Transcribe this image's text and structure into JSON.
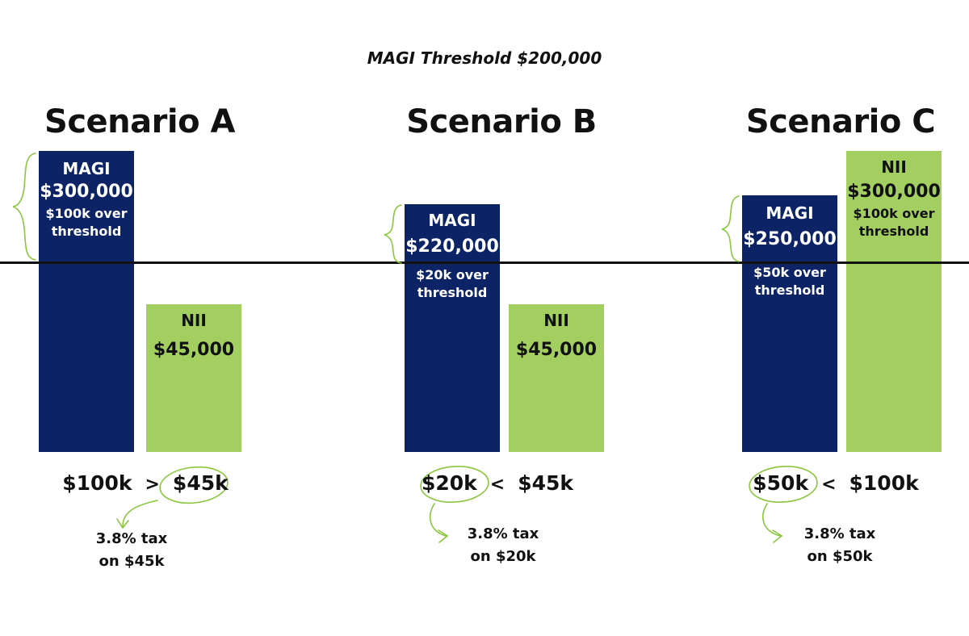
{
  "chart_data": {
    "type": "bar",
    "title": "MAGI Threshold $200,000",
    "threshold": 200000,
    "scenarios": [
      {
        "title": "Scenario A",
        "magi": {
          "label": "MAGI",
          "value": 300000,
          "value_text": "$300,000",
          "note": "$100k over threshold"
        },
        "nii": {
          "label": "NII",
          "value": 45000,
          "value_text": "$45,000",
          "note": ""
        },
        "compare": {
          "left": "$100k",
          "op": ">",
          "right": "$45k",
          "circled": "right"
        },
        "tax_note": [
          "3.8% tax",
          "on $45k"
        ]
      },
      {
        "title": "Scenario B",
        "magi": {
          "label": "MAGI",
          "value": 220000,
          "value_text": "$220,000",
          "note": "$20k over threshold"
        },
        "nii": {
          "label": "NII",
          "value": 45000,
          "value_text": "$45,000",
          "note": ""
        },
        "compare": {
          "left": "$20k",
          "op": "<",
          "right": "$45k",
          "circled": "left"
        },
        "tax_note": [
          "3.8% tax",
          "on $20k"
        ]
      },
      {
        "title": "Scenario C",
        "magi": {
          "label": "MAGI",
          "value": 250000,
          "value_text": "$250,000",
          "note": "$50k over threshold"
        },
        "nii": {
          "label": "NII",
          "value": 300000,
          "value_text": "$300,000",
          "note": "$100k over threshold"
        },
        "compare": {
          "left": "$50k",
          "op": "<",
          "right": "$100k",
          "circled": "left"
        },
        "tax_note": [
          "3.8% tax",
          "on $50k"
        ]
      }
    ]
  },
  "colors": {
    "magi": "#0c2366",
    "nii": "#a3cf60",
    "accent": "#8cc63f"
  }
}
